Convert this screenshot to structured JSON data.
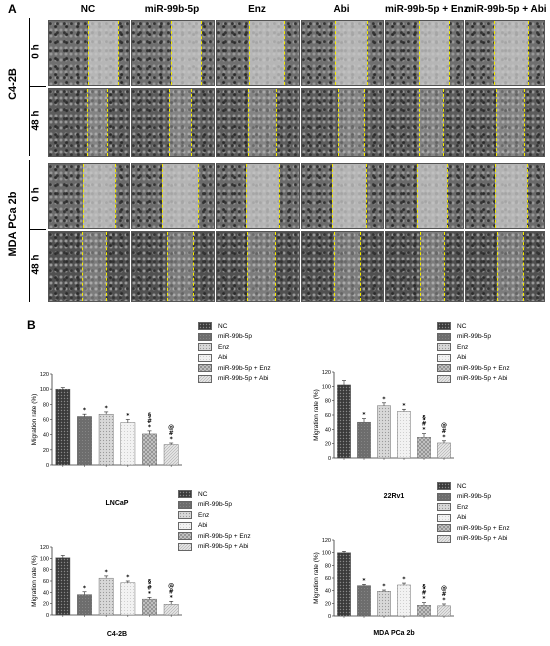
{
  "panel_a": {
    "letter": "A",
    "columns": [
      "NC",
      "miR-99b-5p",
      "Enz",
      "Abi",
      "miR-99b-5p + Enz",
      "miR-99b-5p + Abi"
    ],
    "groups": [
      {
        "name": "C4-2B",
        "rows": [
          {
            "time": "0 h"
          },
          {
            "time": "48 h"
          }
        ]
      },
      {
        "name": "MDA PCa 2b",
        "rows": [
          {
            "time": "0 h"
          },
          {
            "time": "48 h"
          }
        ]
      }
    ]
  },
  "panel_b": {
    "letter": "B",
    "legend_entries": [
      "NC",
      "miR-99b-5p",
      "Enz",
      "Abi",
      "miR-99b-5p + Enz",
      "miR-99b-5p + Abi"
    ]
  },
  "chart_data": [
    {
      "type": "bar",
      "title": "LNCaP",
      "ylabel": "Migration rate (%)",
      "ylim": [
        0,
        120
      ],
      "yticks": [
        "0",
        "20",
        "40",
        "60",
        "80",
        "100",
        "120"
      ],
      "categories": [
        "NC",
        "miR-99b-5p",
        "Enz",
        "Abi",
        "miR-99b-5p + Enz",
        "miR-99b-5p + Abi"
      ],
      "values": [
        100,
        64,
        67,
        56,
        41,
        27
      ],
      "errors": [
        2,
        3,
        3,
        4,
        4,
        2
      ],
      "annotations": [
        "",
        "*",
        "*",
        "*",
        "*\n#\n§",
        "*\n#\n@"
      ]
    },
    {
      "type": "bar",
      "title": "22Rv1",
      "ylabel": "Migration rate (%)",
      "ylim": [
        0,
        120
      ],
      "yticks": [
        "0",
        "20",
        "40",
        "60",
        "80",
        "100",
        "120"
      ],
      "categories": [
        "NC",
        "miR-99b-5p",
        "Enz",
        "Abi",
        "miR-99b-5p + Enz",
        "miR-99b-5p + Abi"
      ],
      "values": [
        102,
        50,
        73,
        65,
        29,
        21
      ],
      "errors": [
        6,
        5,
        4,
        3,
        5,
        3
      ],
      "annotations": [
        "",
        "*",
        "*",
        "*",
        "*\n#\n§",
        "*\n#\n@"
      ]
    },
    {
      "type": "bar",
      "title": "C4-2B",
      "ylabel": "Migration rate (%)",
      "ylim": [
        0,
        120
      ],
      "yticks": [
        "0",
        "20",
        "40",
        "60",
        "80",
        "100",
        "120"
      ],
      "categories": [
        "NC",
        "miR-99b-5p",
        "Enz",
        "Abi",
        "miR-99b-5p + Enz",
        "miR-99b-5p + Abi"
      ],
      "values": [
        101,
        36,
        65,
        57,
        28,
        19
      ],
      "errors": [
        4,
        5,
        4,
        3,
        3,
        5
      ],
      "annotations": [
        "",
        "*",
        "*",
        "*",
        "*\n#\n§",
        "*\n#\n@"
      ]
    },
    {
      "type": "bar",
      "title": "MDA PCa 2b",
      "ylabel": "Migration rate (%)",
      "ylim": [
        0,
        120
      ],
      "yticks": [
        "0",
        "20",
        "40",
        "60",
        "80",
        "100",
        "120"
      ],
      "categories": [
        "NC",
        "miR-99b-5p",
        "Enz",
        "Abi",
        "miR-99b-5p + Enz",
        "miR-99b-5p + Abi"
      ],
      "values": [
        100,
        48,
        39,
        49,
        17,
        16
      ],
      "errors": [
        2,
        2,
        2,
        3,
        4,
        3
      ],
      "annotations": [
        "",
        "*",
        "*",
        "*",
        "*\n#\n§",
        "*\n#\n@"
      ]
    }
  ]
}
